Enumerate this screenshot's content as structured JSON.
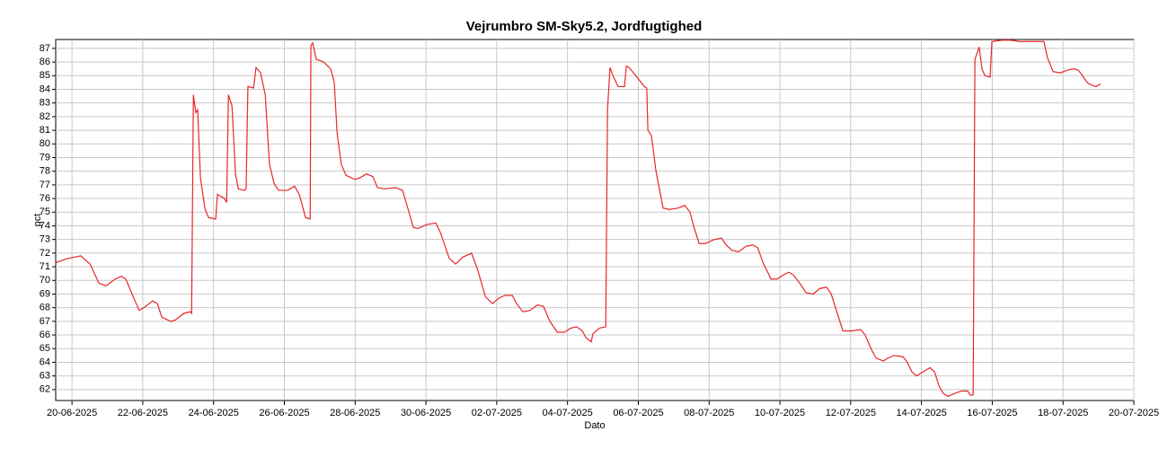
{
  "chart_data": {
    "type": "line",
    "title": "Vejrumbro SM-Sky5.2, Jordfugtighed",
    "xlabel": "Dato",
    "ylabel": "pct",
    "color": "#e8262b",
    "grid": true,
    "xlim": [
      -0.46,
      30
    ],
    "ylim": [
      61.2,
      87.65
    ],
    "xticks": [
      {
        "value": 0,
        "label": "20-06-2025"
      },
      {
        "value": 2,
        "label": "22-06-2025"
      },
      {
        "value": 4,
        "label": "24-06-2025"
      },
      {
        "value": 6,
        "label": "26-06-2025"
      },
      {
        "value": 8,
        "label": "28-06-2025"
      },
      {
        "value": 10,
        "label": "30-06-2025"
      },
      {
        "value": 12,
        "label": "02-07-2025"
      },
      {
        "value": 14,
        "label": "04-07-2025"
      },
      {
        "value": 16,
        "label": "06-07-2025"
      },
      {
        "value": 18,
        "label": "08-07-2025"
      },
      {
        "value": 20,
        "label": "10-07-2025"
      },
      {
        "value": 22,
        "label": "12-07-2025"
      },
      {
        "value": 24,
        "label": "14-07-2025"
      },
      {
        "value": 26,
        "label": "16-07-2025"
      },
      {
        "value": 28,
        "label": "18-07-2025"
      },
      {
        "value": 30,
        "label": "20-07-2025"
      }
    ],
    "yticks": [
      62,
      63,
      64,
      65,
      66,
      67,
      68,
      69,
      70,
      71,
      72,
      73,
      74,
      75,
      76,
      77,
      78,
      79,
      80,
      81,
      82,
      83,
      84,
      85,
      86,
      87
    ],
    "x": [
      -0.46,
      -0.13,
      0.25,
      0.51,
      0.76,
      0.96,
      1.22,
      1.4,
      1.52,
      1.78,
      1.9,
      2.03,
      2.28,
      2.41,
      2.54,
      2.79,
      2.92,
      3.17,
      3.35,
      3.38,
      3.43,
      3.5,
      3.55,
      3.63,
      3.76,
      3.86,
      4.06,
      4.11,
      4.31,
      4.37,
      4.42,
      4.52,
      4.62,
      4.7,
      4.87,
      4.92,
      4.97,
      5.13,
      5.2,
      5.33,
      5.46,
      5.58,
      5.71,
      5.84,
      6.09,
      6.29,
      6.42,
      6.6,
      6.73,
      6.75,
      6.8,
      6.9,
      7.11,
      7.31,
      7.41,
      7.49,
      7.61,
      7.74,
      7.99,
      8.12,
      8.32,
      8.5,
      8.63,
      8.83,
      9.14,
      9.34,
      9.52,
      9.64,
      9.77,
      10.03,
      10.28,
      10.41,
      10.66,
      10.84,
      11.04,
      11.29,
      11.47,
      11.68,
      11.88,
      12.06,
      12.23,
      12.44,
      12.56,
      12.74,
      12.94,
      13.15,
      13.32,
      13.5,
      13.71,
      13.91,
      14.09,
      14.26,
      14.42,
      14.52,
      14.67,
      14.72,
      14.9,
      15.08,
      15.13,
      15.2,
      15.3,
      15.43,
      15.61,
      15.66,
      15.74,
      15.99,
      16.17,
      16.24,
      16.27,
      16.37,
      16.5,
      16.7,
      16.88,
      17.13,
      17.31,
      17.46,
      17.56,
      17.72,
      17.89,
      18.15,
      18.35,
      18.48,
      18.65,
      18.83,
      19.04,
      19.24,
      19.37,
      19.54,
      19.75,
      19.92,
      20.1,
      20.25,
      20.38,
      20.56,
      20.74,
      20.94,
      21.12,
      21.32,
      21.45,
      21.62,
      21.78,
      22.03,
      22.28,
      22.41,
      22.59,
      22.72,
      22.92,
      23.05,
      23.22,
      23.48,
      23.6,
      23.73,
      23.86,
      23.98,
      24.24,
      24.37,
      24.49,
      24.62,
      24.75,
      24.92,
      25.13,
      25.3,
      25.38,
      25.46,
      25.51,
      25.63,
      25.71,
      25.79,
      25.94,
      25.99,
      26.27,
      26.52,
      26.78,
      27.16,
      27.46,
      27.56,
      27.72,
      27.92,
      28.12,
      28.3,
      28.43,
      28.55,
      28.68,
      28.81,
      28.93,
      29.06
    ],
    "values": [
      71.3,
      71.6,
      71.8,
      71.2,
      69.8,
      69.6,
      70.1,
      70.3,
      70.1,
      68.5,
      67.8,
      68.0,
      68.5,
      68.3,
      67.3,
      67.0,
      67.1,
      67.6,
      67.7,
      67.6,
      83.6,
      82.3,
      82.5,
      77.5,
      75.2,
      74.6,
      74.5,
      76.3,
      76.0,
      75.7,
      83.6,
      82.8,
      77.8,
      76.7,
      76.6,
      76.7,
      84.2,
      84.1,
      85.6,
      85.2,
      83.6,
      78.5,
      77.1,
      76.6,
      76.6,
      76.9,
      76.3,
      74.6,
      74.5,
      87.2,
      87.4,
      86.2,
      86.0,
      85.5,
      84.5,
      80.8,
      78.5,
      77.7,
      77.4,
      77.5,
      77.8,
      77.6,
      76.8,
      76.7,
      76.8,
      76.6,
      75.0,
      73.9,
      73.8,
      74.1,
      74.2,
      73.5,
      71.6,
      71.2,
      71.7,
      72.0,
      70.7,
      68.8,
      68.3,
      68.7,
      68.9,
      68.9,
      68.3,
      67.7,
      67.8,
      68.2,
      68.1,
      67.0,
      66.2,
      66.2,
      66.5,
      66.6,
      66.3,
      65.8,
      65.5,
      66.1,
      66.5,
      66.6,
      82.5,
      85.6,
      84.9,
      84.2,
      84.2,
      85.7,
      85.6,
      84.8,
      84.2,
      84.1,
      81.0,
      80.6,
      78.0,
      75.3,
      75.2,
      75.3,
      75.5,
      75.0,
      74.0,
      72.7,
      72.7,
      73.0,
      73.1,
      72.6,
      72.2,
      72.1,
      72.5,
      72.6,
      72.4,
      71.2,
      70.1,
      70.1,
      70.4,
      70.6,
      70.4,
      69.8,
      69.1,
      69.0,
      69.4,
      69.5,
      69.0,
      67.6,
      66.3,
      66.3,
      66.4,
      66.0,
      64.9,
      64.3,
      64.1,
      64.3,
      64.5,
      64.4,
      64.0,
      63.3,
      63.0,
      63.2,
      63.6,
      63.3,
      62.3,
      61.7,
      61.5,
      61.7,
      61.9,
      61.9,
      61.6,
      61.6,
      86.2,
      87.1,
      85.5,
      85.0,
      84.9,
      87.5,
      87.6,
      87.6,
      87.5,
      87.5,
      87.5,
      86.3,
      85.3,
      85.2,
      85.4,
      85.5,
      85.4,
      85.0,
      84.5,
      84.3,
      84.2,
      84.4
    ]
  }
}
